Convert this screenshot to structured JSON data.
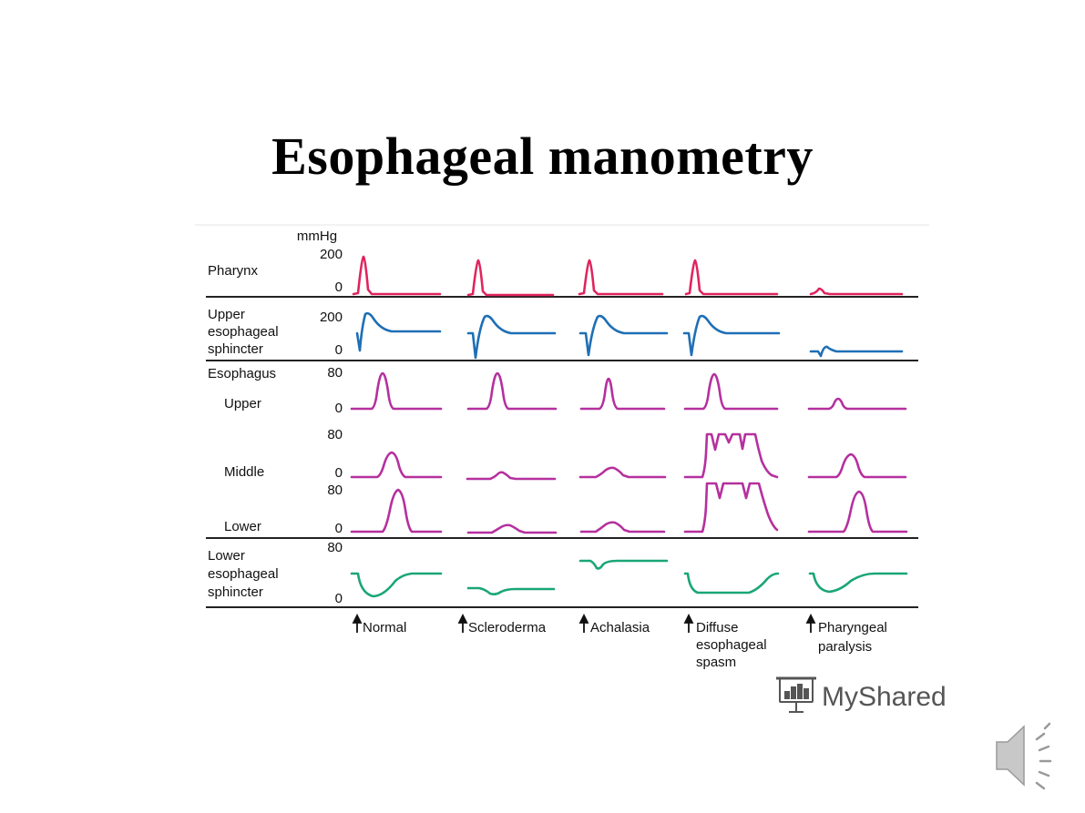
{
  "slide": {
    "title": "Esophageal manometry"
  },
  "figure": {
    "unit_label": "mmHg",
    "rows": [
      {
        "key": "pharynx",
        "label_lines": [
          "Pharynx"
        ],
        "scale_high": "200",
        "scale_low": "0",
        "color": "#e0245e"
      },
      {
        "key": "ues",
        "label_lines": [
          "Upper",
          "esophageal",
          "sphincter"
        ],
        "scale_high": "200",
        "scale_low": "0",
        "color": "#1f6fb5"
      },
      {
        "key": "eso_upper",
        "label_lines": [
          "Esophagus",
          "Upper"
        ],
        "scale_high": "80",
        "scale_low": "0",
        "color": "#b5309e"
      },
      {
        "key": "eso_middle",
        "label_lines": [
          "Middle"
        ],
        "scale_high": "80",
        "scale_low": "0",
        "color": "#b5309e"
      },
      {
        "key": "eso_lower",
        "label_lines": [
          "Lower"
        ],
        "scale_high": "80",
        "scale_low": "0",
        "color": "#b5309e"
      },
      {
        "key": "les",
        "label_lines": [
          "Lower",
          "esophageal",
          "sphincter"
        ],
        "scale_high": "80",
        "scale_low": "0",
        "color": "#1aa676"
      }
    ],
    "conditions": [
      {
        "key": "normal",
        "label_lines": [
          "Normal"
        ]
      },
      {
        "key": "scleroderma",
        "label_lines": [
          "Scleroderma"
        ]
      },
      {
        "key": "achalasia",
        "label_lines": [
          "Achalasia"
        ]
      },
      {
        "key": "des",
        "label_lines": [
          "Diffuse",
          "esophageal",
          "spasm"
        ]
      },
      {
        "key": "pharyngeal",
        "label_lines": [
          "Pharyngeal",
          "paralysis"
        ]
      }
    ]
  },
  "watermark": {
    "text": "MyShared",
    "icon": "presentation-board-icon"
  },
  "audio": {
    "icon": "speaker-icon"
  }
}
